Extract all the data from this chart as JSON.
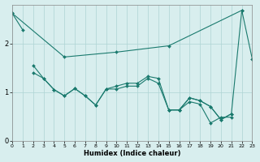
{
  "xlabel": "Humidex (Indice chaleur)",
  "background_color": "#d8eeee",
  "grid_color": "#aed4d4",
  "line_color": "#1a7a6e",
  "xlim": [
    0,
    23
  ],
  "ylim": [
    0,
    2.8
  ],
  "xticks": [
    0,
    1,
    2,
    3,
    4,
    5,
    6,
    7,
    8,
    9,
    10,
    11,
    12,
    13,
    14,
    15,
    16,
    17,
    18,
    19,
    20,
    21,
    22,
    23
  ],
  "yticks": [
    0,
    1,
    2
  ],
  "line1": {
    "x": [
      0,
      1
    ],
    "y": [
      2.62,
      2.28
    ]
  },
  "line2": {
    "x": [
      0,
      5,
      10,
      15,
      22
    ],
    "y": [
      2.62,
      1.72,
      1.82,
      1.95,
      2.68
    ]
  },
  "line3": {
    "x": [
      2,
      3,
      4,
      5,
      6,
      7,
      8,
      9,
      10,
      11,
      12,
      13,
      14,
      15,
      16,
      17,
      18,
      19,
      20,
      21
    ],
    "y": [
      1.55,
      1.28,
      1.05,
      0.92,
      1.07,
      0.92,
      0.73,
      1.06,
      1.12,
      1.18,
      1.18,
      1.32,
      1.28,
      0.63,
      0.63,
      0.88,
      0.82,
      0.7,
      0.43,
      0.55
    ]
  },
  "line4": {
    "x": [
      2,
      3,
      4,
      5,
      6,
      7,
      8,
      9,
      10,
      11,
      12,
      13,
      14,
      15,
      16,
      17,
      18,
      19,
      20,
      21
    ],
    "y": [
      1.4,
      1.28,
      1.05,
      0.92,
      1.07,
      0.92,
      0.73,
      1.06,
      1.06,
      1.12,
      1.12,
      1.28,
      1.18,
      0.63,
      0.63,
      0.8,
      0.75,
      0.36,
      0.48,
      0.48
    ]
  },
  "line5": {
    "x": [
      15,
      16,
      17,
      18,
      19,
      20,
      21,
      22,
      23
    ],
    "y": [
      0.63,
      0.63,
      0.88,
      0.82,
      0.7,
      0.43,
      0.55,
      2.68,
      1.68
    ]
  }
}
